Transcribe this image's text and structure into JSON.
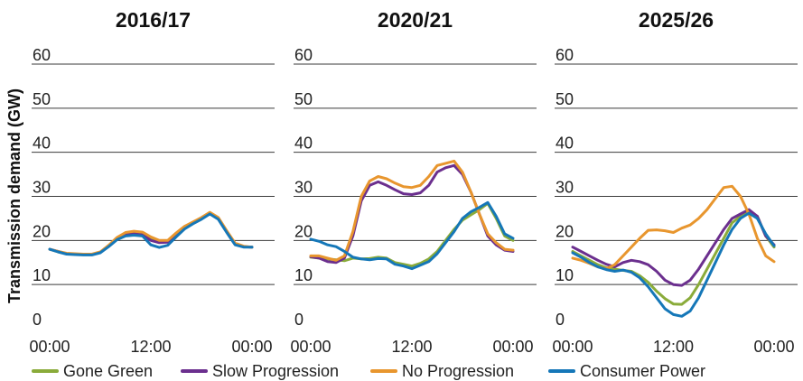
{
  "chart_data": {
    "type": "line",
    "ylabel": "Transmission demand (GW)",
    "ylim": [
      0,
      60
    ],
    "yticks": [
      0,
      10,
      20,
      30,
      40,
      50,
      60
    ],
    "xticks": [
      "00:00",
      "12:00",
      "00:00"
    ],
    "xlim": [
      0,
      24
    ],
    "grid": true,
    "legend_placement": "bottom",
    "series_styles": [
      {
        "name": "Gone Green",
        "color": "#8aab3a"
      },
      {
        "name": "Slow Progression",
        "color": "#6b2f8e"
      },
      {
        "name": "No Progression",
        "color": "#e8962e"
      },
      {
        "name": "Consumer Power",
        "color": "#1577b8"
      }
    ],
    "panels": [
      {
        "title": "2016/17",
        "x": [
          0,
          1,
          2,
          3,
          4,
          5,
          6,
          7,
          8,
          9,
          10,
          11,
          12,
          13,
          14,
          15,
          16,
          17,
          18,
          19,
          20,
          21,
          22,
          23,
          24
        ],
        "series": [
          {
            "name": "Gone Green",
            "values": [
              18.0,
              17.4,
              17.0,
              16.9,
              16.8,
              16.8,
              17.3,
              18.8,
              20.5,
              21.5,
              21.8,
              21.7,
              20.6,
              19.7,
              19.8,
              21.5,
              23.0,
              24.0,
              25.0,
              26.2,
              25.0,
              22.0,
              19.2,
              18.6,
              18.5
            ]
          },
          {
            "name": "Slow Progression",
            "values": [
              18.0,
              17.5,
              17.0,
              16.9,
              16.8,
              16.8,
              17.3,
              18.8,
              20.4,
              21.3,
              21.5,
              21.3,
              20.0,
              19.5,
              19.6,
              21.2,
              22.8,
              24.0,
              25.0,
              26.3,
              25.0,
              22.0,
              19.2,
              18.6,
              18.5
            ]
          },
          {
            "name": "No Progression",
            "values": [
              18.0,
              17.5,
              17.1,
              17.0,
              16.9,
              16.9,
              17.4,
              18.9,
              20.7,
              21.8,
              22.1,
              21.9,
              20.8,
              20.0,
              20.0,
              21.7,
              23.2,
              24.2,
              25.2,
              26.4,
              25.2,
              22.2,
              19.4,
              18.7,
              18.5
            ]
          },
          {
            "name": "Consumer Power",
            "values": [
              18.0,
              17.4,
              16.9,
              16.8,
              16.7,
              16.7,
              17.2,
              18.6,
              20.2,
              21.0,
              21.2,
              21.0,
              19.0,
              18.4,
              18.9,
              20.8,
              22.6,
              23.8,
              24.8,
              26.0,
              24.8,
              21.8,
              19.0,
              18.5,
              18.5
            ]
          }
        ]
      },
      {
        "title": "2020/21",
        "x": [
          0,
          1,
          2,
          3,
          4,
          5,
          6,
          7,
          8,
          9,
          10,
          11,
          12,
          13,
          14,
          15,
          16,
          17,
          18,
          19,
          20,
          21,
          22,
          23,
          24
        ],
        "series": [
          {
            "name": "Gone Green",
            "values": [
              16.2,
              16.0,
              15.8,
              15.6,
              15.4,
              16.0,
              15.8,
              15.9,
              16.2,
              16.0,
              15.0,
              14.6,
              14.2,
              14.8,
              15.8,
              17.5,
              20.0,
              22.5,
              24.6,
              25.8,
              27.0,
              28.4,
              25.0,
              21.0,
              20.0
            ]
          },
          {
            "name": "Slow Progression",
            "values": [
              16.3,
              16.0,
              15.2,
              15.0,
              16.0,
              21.0,
              29.0,
              32.5,
              33.3,
              32.5,
              31.5,
              30.6,
              30.4,
              30.8,
              32.5,
              35.5,
              36.5,
              37.0,
              35.0,
              31.0,
              26.0,
              21.0,
              19.0,
              17.8,
              17.5
            ]
          },
          {
            "name": "No Progression",
            "values": [
              16.5,
              16.5,
              16.0,
              15.5,
              16.5,
              22.0,
              30.0,
              33.5,
              34.5,
              34.0,
              33.0,
              32.2,
              32.0,
              32.5,
              34.5,
              37.0,
              37.5,
              38.0,
              35.5,
              31.0,
              26.0,
              21.5,
              19.5,
              18.0,
              17.8
            ]
          },
          {
            "name": "Consumer Power",
            "values": [
              20.3,
              19.8,
              19.0,
              18.6,
              17.5,
              16.2,
              15.8,
              15.6,
              15.9,
              15.8,
              14.6,
              14.2,
              13.6,
              14.4,
              15.2,
              17.0,
              19.5,
              22.0,
              25.0,
              26.5,
              27.5,
              28.6,
              25.5,
              21.5,
              20.5
            ]
          }
        ]
      },
      {
        "title": "2025/26",
        "x": [
          0,
          1,
          2,
          3,
          4,
          5,
          6,
          7,
          8,
          9,
          10,
          11,
          12,
          13,
          14,
          15,
          16,
          17,
          18,
          19,
          20,
          21,
          22,
          23,
          24
        ],
        "series": [
          {
            "name": "Gone Green",
            "values": [
              17.5,
              16.5,
              15.5,
              14.5,
              13.8,
              13.5,
              13.2,
              13.0,
              12.0,
              10.5,
              8.5,
              6.8,
              5.6,
              5.5,
              7.0,
              10.0,
              13.5,
              17.0,
              20.5,
              24.0,
              25.5,
              26.5,
              25.5,
              21.0,
              18.5
            ]
          },
          {
            "name": "Slow Progression",
            "values": [
              18.5,
              17.5,
              16.5,
              15.5,
              14.6,
              14.0,
              15.0,
              15.5,
              15.2,
              14.5,
              13.0,
              11.0,
              10.0,
              9.8,
              11.0,
              13.5,
              16.5,
              19.5,
              22.5,
              25.0,
              26.0,
              27.0,
              25.5,
              21.0,
              19.0
            ]
          },
          {
            "name": "No Progression",
            "values": [
              16.0,
              15.5,
              14.8,
              14.0,
              13.6,
              14.5,
              16.5,
              18.5,
              20.5,
              22.3,
              22.4,
              22.2,
              21.8,
              22.8,
              23.5,
              25.0,
              27.0,
              29.5,
              32.0,
              32.3,
              30.0,
              26.0,
              20.5,
              16.5,
              15.2
            ]
          },
          {
            "name": "Consumer Power",
            "values": [
              17.2,
              16.2,
              15.0,
              14.0,
              13.4,
              13.0,
              13.3,
              12.8,
              11.5,
              9.5,
              7.0,
              4.5,
              3.2,
              2.8,
              4.0,
              7.0,
              11.0,
              15.0,
              19.0,
              22.5,
              25.0,
              26.2,
              25.0,
              21.5,
              18.8
            ]
          }
        ]
      }
    ]
  }
}
